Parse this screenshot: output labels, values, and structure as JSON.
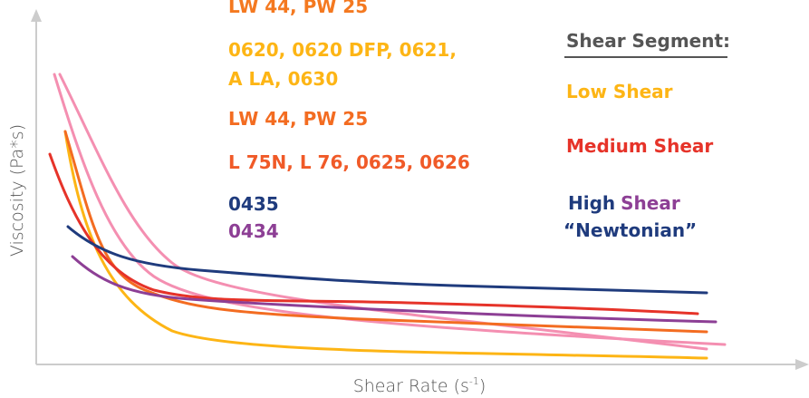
{
  "axes": {
    "y_label": "Viscosity (Pa*s)",
    "x_label": {
      "text": "Shear Rate (s",
      "superscript": "-1",
      "close": ")"
    }
  },
  "products": [
    {
      "label": "LW 44, PW 25",
      "color": "#f47920"
    },
    {
      "label": "0620, 0620 DFP, 0621,",
      "color": "#fdb515"
    },
    {
      "label": "A LA, 0630",
      "color": "#fdb515"
    },
    {
      "label": "LW 44, PW 25",
      "color": "#f36c21"
    },
    {
      "label": "L 75N, L 76, 0625, 0626",
      "color": "#f05a28"
    },
    {
      "label": "0435",
      "color": "#1f3b7d"
    },
    {
      "label": "0434",
      "color": "#8d3f95"
    }
  ],
  "segments": {
    "title": "Shear Segment:",
    "low": "Low Shear",
    "medium": "Medium Shear",
    "high": {
      "word1": "High",
      "word2": "Shear",
      "word3": "“Newtonian”"
    }
  }
}
